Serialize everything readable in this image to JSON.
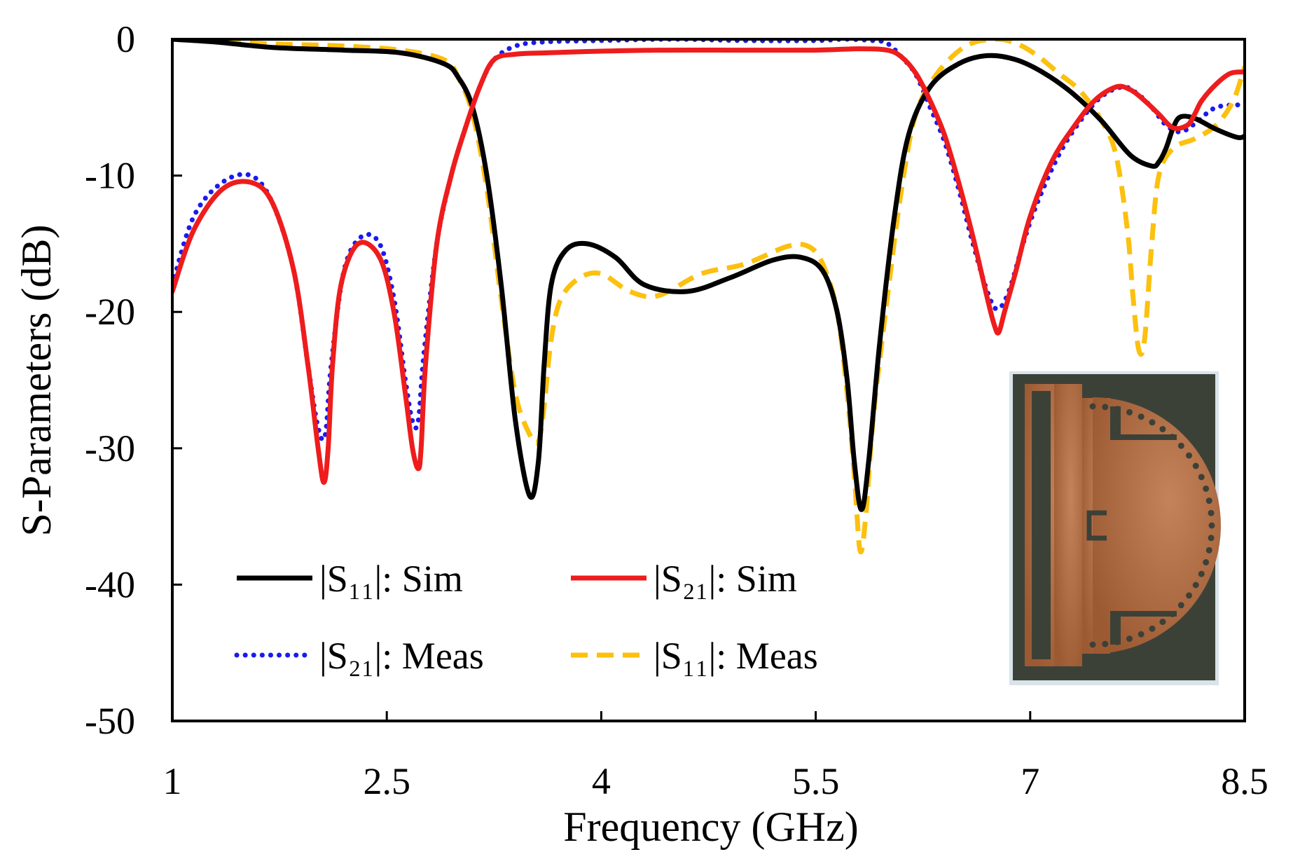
{
  "chart_data": {
    "type": "line",
    "xlabel": "Frequency (GHz)",
    "ylabel": "S-Parameters (dB)",
    "xlim": [
      1,
      8.5
    ],
    "ylim": [
      -50,
      0
    ],
    "xticks": [
      1,
      2.5,
      4,
      5.5,
      7,
      8.5
    ],
    "xtick_labels": [
      "1",
      "2.5",
      "4",
      "5.5",
      "7",
      "8.5"
    ],
    "yticks": [
      0,
      -10,
      -20,
      -30,
      -40,
      -50
    ],
    "ytick_labels": [
      "0",
      "-10",
      "-20",
      "-30",
      "-40",
      "-50"
    ],
    "grid": false,
    "legend_position": "bottom-left",
    "series": [
      {
        "name": "|S11|: Sim",
        "legend_label": "|S₁₁|: Sim",
        "color": "#000000",
        "style": "solid",
        "x": [
          1.0,
          1.3,
          1.7,
          2.2,
          2.6,
          2.9,
          3.0,
          3.1,
          3.2,
          3.3,
          3.4,
          3.5,
          3.56,
          3.6,
          3.65,
          3.75,
          3.9,
          4.1,
          4.3,
          4.6,
          4.9,
          5.2,
          5.4,
          5.55,
          5.65,
          5.72,
          5.77,
          5.82,
          5.87,
          5.95,
          6.05,
          6.15,
          6.3,
          6.5,
          6.7,
          6.9,
          7.1,
          7.3,
          7.5,
          7.7,
          7.85,
          7.9,
          7.95,
          8.0,
          8.05,
          8.15,
          8.3,
          8.45,
          8.5
        ],
        "y": [
          0,
          -0.2,
          -0.6,
          -0.8,
          -1.0,
          -1.8,
          -2.8,
          -5,
          -10,
          -18,
          -28,
          -33.5,
          -31,
          -24,
          -18,
          -15.5,
          -15,
          -16,
          -18,
          -18.5,
          -17.5,
          -16.2,
          -16,
          -17,
          -20,
          -25,
          -31,
          -34.5,
          -31,
          -22,
          -13,
          -7,
          -3.5,
          -1.8,
          -1.2,
          -1.5,
          -2.5,
          -4,
          -6,
          -8.5,
          -9.3,
          -9,
          -8,
          -6.5,
          -5.7,
          -5.8,
          -6.6,
          -7.2,
          -7.1
        ]
      },
      {
        "name": "|S21|: Sim",
        "legend_label": "|S₂₁|: Sim",
        "color": "#ee1c1c",
        "style": "solid",
        "x": [
          1.0,
          1.15,
          1.35,
          1.55,
          1.7,
          1.85,
          1.95,
          2.02,
          2.06,
          2.09,
          2.12,
          2.18,
          2.3,
          2.45,
          2.55,
          2.63,
          2.68,
          2.72,
          2.74,
          2.77,
          2.85,
          2.95,
          3.05,
          3.15,
          3.25,
          3.4,
          3.6,
          3.9,
          4.4,
          5.0,
          5.5,
          5.8,
          6.0,
          6.1,
          6.2,
          6.3,
          6.4,
          6.5,
          6.6,
          6.7,
          6.75,
          6.78,
          6.82,
          6.9,
          7.0,
          7.15,
          7.3,
          7.45,
          7.6,
          7.7,
          7.8,
          7.9,
          8.0,
          8.1,
          8.15,
          8.2,
          8.3,
          8.4,
          8.5
        ],
        "y": [
          -18.5,
          -14,
          -11,
          -10.5,
          -12,
          -17,
          -24,
          -30,
          -32.5,
          -30,
          -24,
          -18,
          -15,
          -16,
          -20,
          -26,
          -30,
          -31.5,
          -30,
          -24,
          -15,
          -10,
          -6.5,
          -3.5,
          -1.5,
          -1.1,
          -1.0,
          -0.9,
          -0.8,
          -0.8,
          -0.8,
          -0.7,
          -0.8,
          -1.3,
          -2.5,
          -4.5,
          -7,
          -10.5,
          -14.5,
          -19,
          -21,
          -21.5,
          -20,
          -17,
          -13,
          -9,
          -6.5,
          -4.5,
          -3.5,
          -3.7,
          -4.5,
          -5.5,
          -6.5,
          -6.3,
          -5.5,
          -4.5,
          -3.3,
          -2.5,
          -2.4
        ]
      },
      {
        "name": "|S21|: Meas",
        "legend_label": "|S₂₁|: Meas",
        "color": "#1a1aee",
        "style": "dotted",
        "x": [
          1.0,
          1.15,
          1.35,
          1.55,
          1.7,
          1.85,
          1.95,
          2.02,
          2.07,
          2.11,
          2.2,
          2.32,
          2.45,
          2.55,
          2.63,
          2.68,
          2.72,
          2.76,
          2.85,
          2.95,
          3.05,
          3.15,
          3.25,
          3.4,
          3.6,
          4.0,
          4.5,
          5.0,
          5.5,
          5.7,
          5.9,
          6.0,
          6.1,
          6.2,
          6.3,
          6.4,
          6.5,
          6.6,
          6.7,
          6.77,
          6.85,
          6.95,
          7.05,
          7.2,
          7.35,
          7.5,
          7.65,
          7.75,
          7.85,
          7.95,
          8.05,
          8.15,
          8.3,
          8.5
        ],
        "y": [
          -18,
          -13,
          -10.5,
          -10,
          -12,
          -17,
          -24,
          -28.5,
          -29,
          -24,
          -17,
          -14.5,
          -15,
          -19,
          -25,
          -28,
          -28,
          -23,
          -15,
          -10,
          -6.5,
          -3.5,
          -1.5,
          -0.5,
          -0.2,
          -0.1,
          0,
          -0.1,
          -0.1,
          0,
          -0.1,
          -0.3,
          -1.3,
          -2.6,
          -5,
          -7.5,
          -11,
          -15,
          -18.5,
          -19.8,
          -18.5,
          -15,
          -12,
          -8.5,
          -6,
          -4.2,
          -3.5,
          -4,
          -5,
          -6.3,
          -6.8,
          -6.2,
          -5,
          -4.8
        ]
      },
      {
        "name": "|S11|: Meas",
        "legend_label": "|S₁₁|: Meas",
        "color": "#fcc00e",
        "style": "dashed",
        "x": [
          1.0,
          1.3,
          1.6,
          1.9,
          2.2,
          2.6,
          2.9,
          3.0,
          3.1,
          3.2,
          3.3,
          3.4,
          3.5,
          3.56,
          3.6,
          3.65,
          3.72,
          3.85,
          4.0,
          4.2,
          4.4,
          4.7,
          5.0,
          5.3,
          5.45,
          5.55,
          5.65,
          5.72,
          5.77,
          5.81,
          5.85,
          5.9,
          6.0,
          6.1,
          6.2,
          6.35,
          6.55,
          6.75,
          6.9,
          7.05,
          7.2,
          7.35,
          7.5,
          7.6,
          7.68,
          7.72,
          7.76,
          7.8,
          7.85,
          7.9,
          8.0,
          8.15,
          8.3,
          8.42,
          8.5
        ],
        "y": [
          0,
          0,
          -0.3,
          -0.4,
          -0.5,
          -0.8,
          -1.5,
          -2.8,
          -5.5,
          -11,
          -19,
          -26,
          -29,
          -29.5,
          -27,
          -22,
          -19,
          -17.5,
          -17.2,
          -18.5,
          -18.8,
          -17.2,
          -16.5,
          -15.2,
          -15.2,
          -16.5,
          -20,
          -26,
          -32,
          -37.5,
          -35,
          -28,
          -19,
          -11,
          -5.5,
          -2.5,
          -0.5,
          0,
          -0.3,
          -1.2,
          -2.5,
          -3.8,
          -6,
          -8.5,
          -14,
          -19,
          -22.8,
          -22,
          -15,
          -10,
          -8,
          -7.3,
          -6.3,
          -4.5,
          -2
        ]
      }
    ]
  },
  "inset": {
    "description_icon": "antenna-photo-icon",
    "substrate_color": "#3c4138",
    "copper_color": "#b06a3e"
  }
}
